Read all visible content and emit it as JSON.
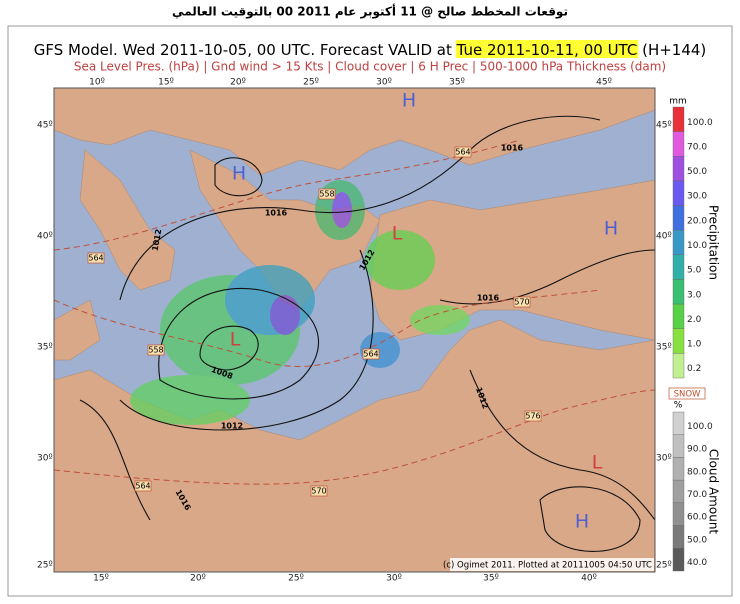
{
  "header": "توقعات المخطط صالح @ 11 أكتوبر عام 2011 00 بالتوقيت العالمي",
  "map": {
    "title_prefix": "GFS Model. Wed 2011-10-05, 00 UTC. Forecast VALID at ",
    "title_highlight": "Tue 2011-10-11, 00 UTC",
    "title_suffix": " (H+144)",
    "subtitle": "Sea Level Pres. (hPa) | Gnd wind > 15 Kts | Cloud cover | 6 H Prec | 500-1000 hPa Thickness (dam)",
    "top_lon_labels": [
      "10º",
      "15º",
      "20º",
      "25º",
      "30º",
      "35º",
      "45º"
    ],
    "bottom_lon_labels": [
      "15º",
      "20º",
      "25º",
      "30º",
      "35º",
      "40º"
    ],
    "left_lat_labels": [
      "45º",
      "40º",
      "35º",
      "30º",
      "25º"
    ],
    "right_lat_labels": [
      "45º",
      "40º",
      "35º",
      "30º",
      "25º"
    ],
    "pressure_labels": [
      "1016",
      "1012",
      "1016",
      "1008",
      "1012",
      "1016",
      "1016",
      "1012",
      "1012"
    ],
    "thickness_labels": [
      "558",
      "564",
      "570",
      "558",
      "564",
      "564",
      "576",
      "564",
      "570"
    ],
    "highs": [
      "H",
      "H",
      "H",
      "H"
    ],
    "lows": [
      "L",
      "L",
      "L"
    ],
    "credit": "(c) Ogimet 2011. Plotted at 20111005 04:50 UTC"
  },
  "precipitation_scale": {
    "unit": "mm",
    "title": "Precipitation",
    "labels": [
      "100.0",
      "70.0",
      "50.0",
      "30.0",
      "20.0",
      "10.0",
      "5.0",
      "3.0",
      "2.0",
      "1.0",
      "0.2"
    ],
    "colors": [
      "#e8303a",
      "#e05ae0",
      "#a050e0",
      "#6a5af0",
      "#4070e0",
      "#3a98c8",
      "#30b0a8",
      "#38c070",
      "#58d048",
      "#88e040",
      "#c0f090"
    ]
  },
  "cloud_scale": {
    "snow": "SNOW",
    "unit": "%",
    "title": "Cloud Amount",
    "labels": [
      "100.0",
      "90.0",
      "80.0",
      "70.0",
      "60.0",
      "50.0",
      "40.0"
    ],
    "colors": [
      "#d0d0d0",
      "#c0c0c0",
      "#b0b0b0",
      "#a0a0a0",
      "#909090",
      "#7a7a7a",
      "#5a5a5a"
    ]
  }
}
